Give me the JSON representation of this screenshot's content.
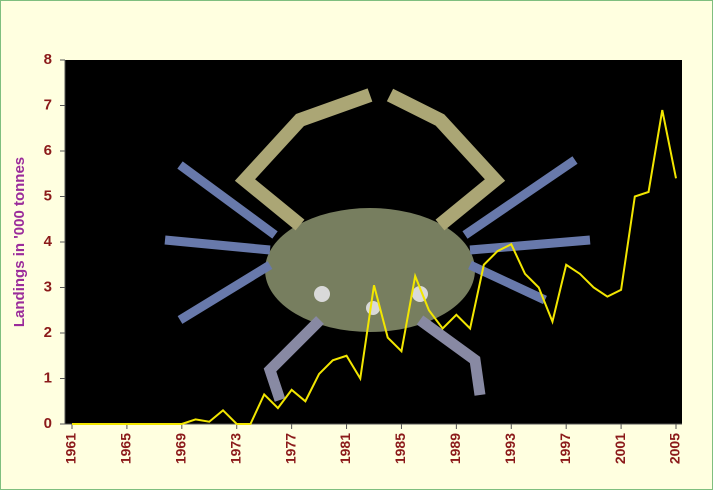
{
  "chart_data": {
    "type": "line",
    "y_label": "Landings in '000 tonnes",
    "x": [
      1961,
      1962,
      1963,
      1964,
      1965,
      1966,
      1967,
      1968,
      1969,
      1970,
      1971,
      1972,
      1973,
      1974,
      1975,
      1976,
      1977,
      1978,
      1979,
      1980,
      1981,
      1982,
      1983,
      1984,
      1985,
      1986,
      1987,
      1988,
      1989,
      1990,
      1991,
      1992,
      1993,
      1994,
      1995,
      1996,
      1997,
      1998,
      1999,
      2000,
      2001,
      2002,
      2003,
      2004,
      2005
    ],
    "series": [
      {
        "color": "#f2e600",
        "values": [
          0,
          0,
          0,
          0,
          0,
          0,
          0,
          0,
          0,
          0.1,
          0.05,
          0.3,
          0,
          0,
          0.65,
          0.35,
          0.75,
          0.5,
          1.1,
          1.4,
          1.5,
          1.0,
          3.05,
          1.9,
          1.6,
          3.25,
          2.5,
          2.1,
          2.4,
          2.1,
          3.5,
          3.8,
          3.95,
          3.3,
          3.0,
          2.25,
          3.5,
          3.3,
          3.0,
          2.8,
          2.95,
          5.0,
          5.1,
          6.9,
          5.4
        ]
      }
    ],
    "xlim": [
      1961,
      2005
    ],
    "xticks": [
      1961,
      1965,
      1969,
      1973,
      1977,
      1981,
      1985,
      1989,
      1993,
      1997,
      2001,
      2005
    ],
    "ylim": [
      0,
      8
    ],
    "yticks": [
      0,
      1,
      2,
      3,
      4,
      5,
      6,
      7,
      8
    ]
  }
}
